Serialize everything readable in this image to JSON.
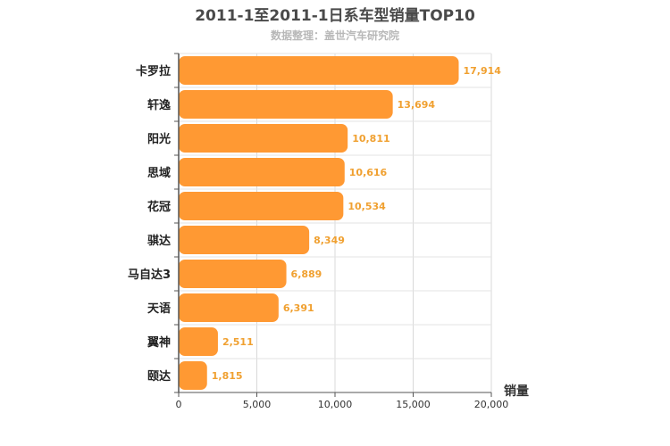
{
  "chart_data": {
    "type": "bar",
    "orientation": "horizontal",
    "title": "2011-1至2011-1日系车型销量TOP10",
    "subtitle": "数据整理：盖世汽车研究院",
    "categories": [
      "卡罗拉",
      "轩逸",
      "阳光",
      "思域",
      "花冠",
      "骐达",
      "马自达3",
      "天语",
      "翼神",
      "颐达"
    ],
    "values": [
      17914,
      13694,
      10811,
      10616,
      10534,
      8349,
      6889,
      6391,
      2511,
      1815
    ],
    "value_labels": [
      "17,914",
      "13,694",
      "10,811",
      "10,616",
      "10,534",
      "8,349",
      "6,889",
      "6,391",
      "2,511",
      "1,815"
    ],
    "xlabel": "销量",
    "ylabel": "",
    "xlim": [
      0,
      20000
    ],
    "ticks": [
      0,
      5000,
      10000,
      15000,
      20000
    ],
    "tick_labels": [
      "0",
      "5,000",
      "10,000",
      "15,000",
      "20,000"
    ],
    "grid": true,
    "bar_color": "#ff9933"
  }
}
